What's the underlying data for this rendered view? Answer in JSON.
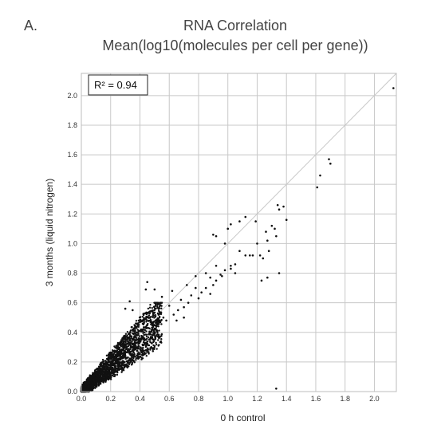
{
  "panel_label": "A.",
  "chart_data": {
    "type": "scatter",
    "title": "RNA Correlation",
    "subtitle": "Mean(log10(molecules per cell per gene))",
    "xlabel": "0 h control",
    "ylabel": "3 months (liquid nitrogen)",
    "xlim": [
      0.0,
      2.15
    ],
    "ylim": [
      0.0,
      2.15
    ],
    "x_ticks": [
      "0.0",
      "0.2",
      "0.4",
      "0.6",
      "0.8",
      "1.0",
      "1.2",
      "1.4",
      "1.6",
      "1.8",
      "2.0"
    ],
    "y_ticks": [
      "0.0",
      "0.2",
      "0.4",
      "0.6",
      "0.8",
      "1.0",
      "1.2",
      "1.4",
      "1.6",
      "1.8",
      "2.0"
    ],
    "grid": true,
    "reference_line": "y = x",
    "annotation": "R² = 0.94",
    "point_color": "#111111",
    "line_color": "#c8c8c8",
    "points": [
      [
        2.13,
        2.05
      ],
      [
        1.69,
        1.57
      ],
      [
        1.7,
        1.54
      ],
      [
        1.63,
        1.46
      ],
      [
        1.61,
        1.38
      ],
      [
        1.34,
        1.26
      ],
      [
        1.35,
        1.23
      ],
      [
        1.38,
        1.25
      ],
      [
        1.4,
        1.16
      ],
      [
        1.3,
        1.12
      ],
      [
        1.32,
        1.1
      ],
      [
        1.33,
        1.05
      ],
      [
        1.27,
        1.02
      ],
      [
        1.28,
        0.95
      ],
      [
        1.2,
        1.0
      ],
      [
        1.22,
        0.92
      ],
      [
        1.24,
        0.9
      ],
      [
        1.17,
        0.92
      ],
      [
        1.12,
        0.92
      ],
      [
        1.08,
        0.95
      ],
      [
        1.05,
        0.86
      ],
      [
        1.02,
        0.83
      ],
      [
        0.98,
        0.82
      ],
      [
        0.95,
        0.79
      ],
      [
        0.92,
        0.75
      ],
      [
        0.9,
        0.72
      ],
      [
        0.88,
        0.77
      ],
      [
        0.85,
        0.7
      ],
      [
        0.82,
        0.67
      ],
      [
        0.8,
        0.63
      ],
      [
        0.78,
        0.7
      ],
      [
        0.75,
        0.65
      ],
      [
        0.73,
        0.6
      ],
      [
        0.7,
        0.57
      ],
      [
        0.68,
        0.62
      ],
      [
        0.66,
        0.55
      ],
      [
        0.63,
        0.52
      ],
      [
        0.6,
        0.58
      ],
      [
        0.58,
        0.48
      ],
      [
        0.56,
        0.5
      ],
      [
        0.55,
        0.64
      ],
      [
        0.5,
        0.69
      ],
      [
        0.44,
        0.69
      ],
      [
        0.45,
        0.74
      ],
      [
        0.33,
        0.61
      ],
      [
        0.3,
        0.56
      ],
      [
        0.35,
        0.55
      ],
      [
        0.9,
        1.06
      ],
      [
        0.92,
        1.05
      ],
      [
        1.0,
        1.1
      ],
      [
        1.02,
        1.13
      ],
      [
        1.08,
        1.15
      ],
      [
        1.12,
        1.18
      ],
      [
        1.19,
        1.15
      ],
      [
        1.26,
        1.08
      ],
      [
        0.92,
        0.85
      ],
      [
        0.85,
        0.8
      ],
      [
        0.78,
        0.78
      ],
      [
        0.72,
        0.72
      ],
      [
        0.62,
        0.68
      ],
      [
        1.33,
        0.02
      ],
      [
        1.02,
        0.85
      ],
      [
        0.96,
        0.78
      ],
      [
        0.88,
        0.66
      ],
      [
        1.15,
        0.92
      ],
      [
        1.23,
        0.75
      ],
      [
        1.27,
        0.77
      ],
      [
        1.05,
        0.8
      ],
      [
        0.65,
        0.48
      ],
      [
        0.7,
        0.5
      ],
      [
        1.35,
        0.8
      ],
      [
        0.98,
        1.0
      ]
    ],
    "dense_cluster": {
      "x_range": [
        0.0,
        0.55
      ],
      "y_range": [
        0.0,
        0.5
      ],
      "approx_count": 2600
    }
  }
}
